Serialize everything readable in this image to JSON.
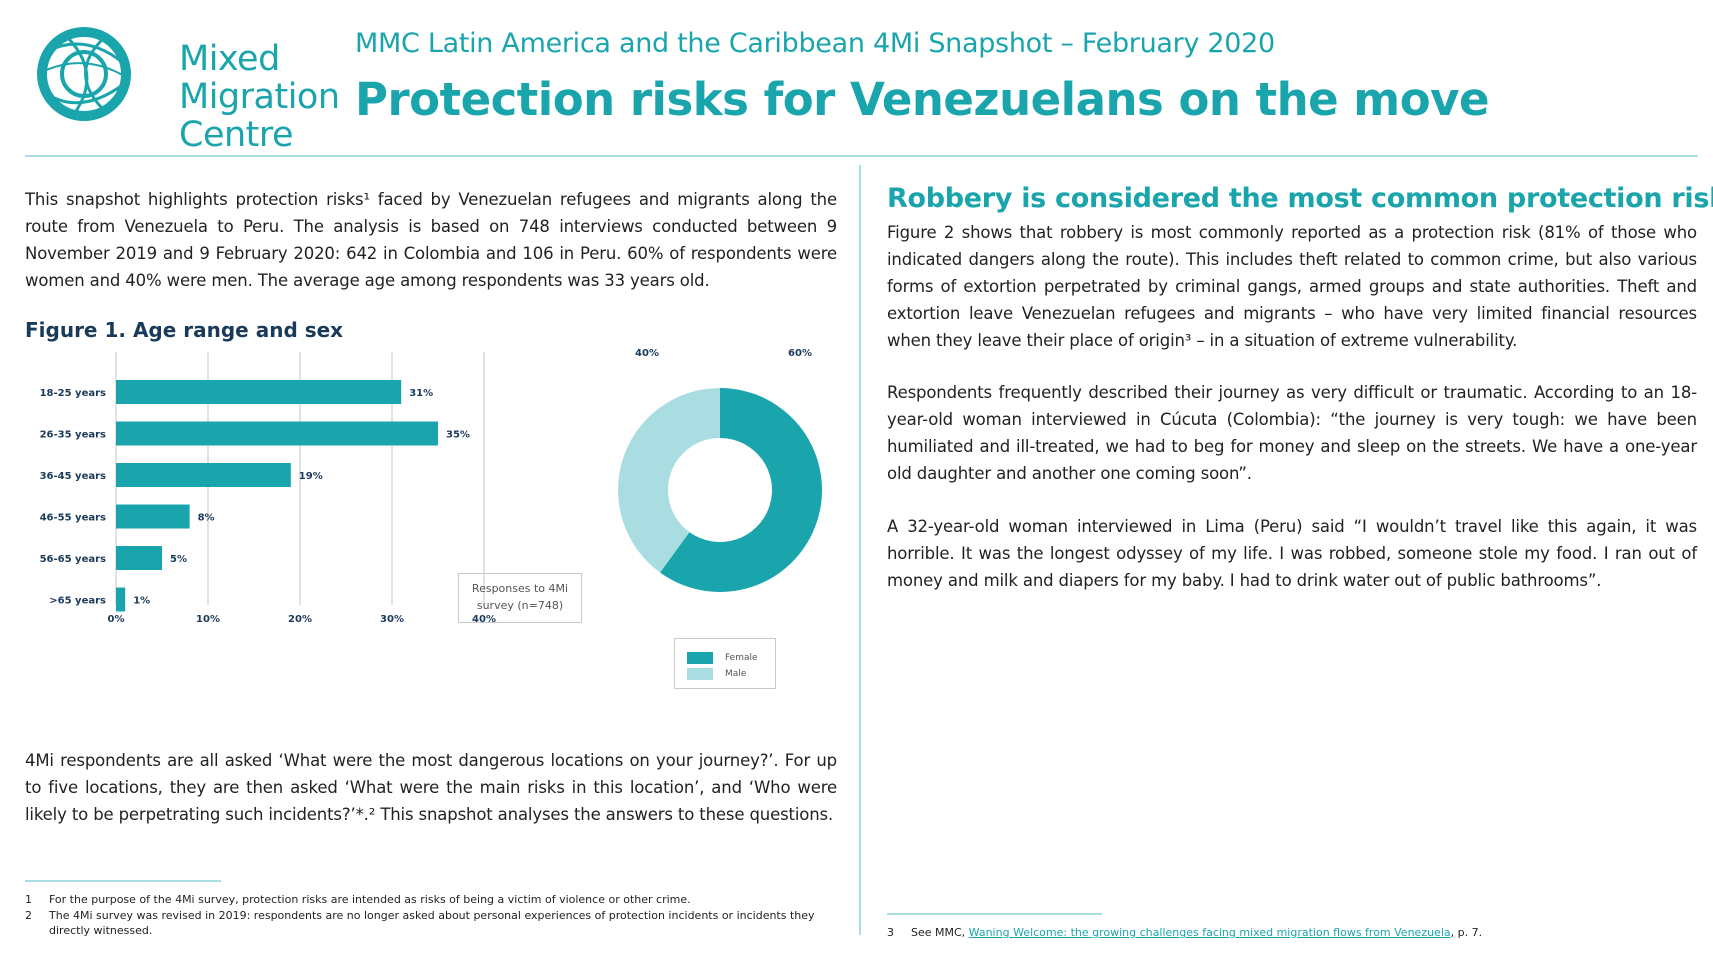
{
  "header": {
    "logo_lines": [
      "Mixed",
      "Migration",
      "Centre"
    ],
    "subtitle": "MMC Latin America and the Caribbean 4Mi Snapshot – February 2020",
    "title": "Protection risks for Venezuelans on the move"
  },
  "left": {
    "intro": "This snapshot highlights protection risks¹ faced by Venezuelan refugees and migrants along the route from Venezuela to Peru. The analysis is based on 748 interviews conducted between 9 November 2019 and 9 February 2020: 642 in Colombia and 106 in Peru. 60% of respondents were women and 40% were men. The average age among respondents was 33 years old.",
    "figure_title": "Figure 1. Age range and sex",
    "chart_note": "Responses to 4Mi survey (n=748)",
    "closing": "4Mi respondents are all asked ‘What were the most dangerous locations on your journey?’. For up to five locations, they are then asked ‘What were the main risks in this location’, and ‘Who were likely to be perpetrating such incidents?’*.² This snapshot analyses the answers to these questions."
  },
  "right": {
    "section_title": "Robbery is considered the most common protection risk",
    "p1": "Figure 2 shows that robbery is most commonly reported as a protection risk (81% of those who indicated dangers along the route). This includes theft related to common crime, but also various forms of extortion perpetrated by criminal gangs, armed groups and state authorities. Theft and extortion leave Venezuelan refugees and migrants – who have very limited financial resources when they leave their place of origin³ – in a situation of extreme vulnerability.",
    "p2": "Respondents frequently described their journey as very difficult or traumatic. According to an 18-year-old woman interviewed in Cúcuta (Colombia): “the journey is very tough: we have been humiliated and ill-treated, we had to beg for money and sleep on the streets. We have a one-year old daughter and another one coming soon”.",
    "p3": "A 32-year-old woman interviewed in Lima (Peru) said “I wouldn’t travel like this again, it was horrible. It was the longest odyssey of my life. I was robbed, someone stole my food. I ran out of money and milk and diapers for my baby. I had to drink water out of public bathrooms”."
  },
  "footnotes": [
    {
      "num": "1",
      "text": "For the purpose of the 4Mi survey, protection risks are intended as risks of being a victim of violence or other crime."
    },
    {
      "num": "2",
      "text": "The 4Mi survey was revised in 2019: respondents are no longer asked about personal experiences of protection incidents or incidents they directly witnessed."
    },
    {
      "num": "3",
      "prefix": "See MMC, ",
      "link": "Waning Welcome: the growing challenges facing mixed migration flows from Venezuela",
      "suffix": ", p. 7."
    }
  ],
  "colors": {
    "accent": "#1aa5ac",
    "female": "#1aa5ac",
    "male": "#aadde2",
    "grid": "#d9d9d9",
    "navy": "#1a3a5a"
  },
  "chart_data": [
    {
      "type": "bar",
      "orientation": "horizontal",
      "categories": [
        "18-25 years",
        "26-35 years",
        "36-45 years",
        "46-55 years",
        "56-65 years",
        ">65 years"
      ],
      "values": [
        31,
        35,
        19,
        8,
        5,
        1
      ],
      "value_labels": [
        "31%",
        "35%",
        "19%",
        "8%",
        "5%",
        "1%"
      ],
      "xlim": [
        0,
        40
      ],
      "xticks": [
        "0%",
        "10%",
        "20%",
        "30%",
        "40%"
      ],
      "grid": true
    },
    {
      "type": "pie",
      "style": "donut",
      "slices": [
        {
          "name": "Female",
          "value": 60,
          "label": "60%"
        },
        {
          "name": "Male",
          "value": 40,
          "label": "40%"
        }
      ],
      "legend": "bottom"
    }
  ]
}
